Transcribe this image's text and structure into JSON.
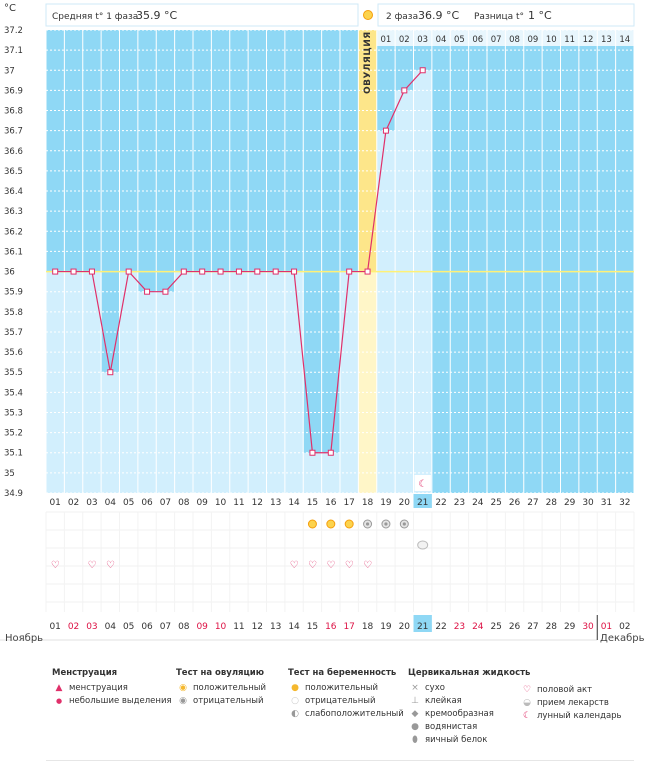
{
  "header": {
    "unit": "°C",
    "phase1_label": "Средняя t° 1 фаза",
    "phase1_value": "35.9 °C",
    "phase2_label": "2 фаза",
    "phase2_value": "36.9 °C",
    "diff_label": "Разница t°",
    "diff_value": "1 °C",
    "ovulation_label": "ОВУЛЯЦИЯ"
  },
  "months": {
    "left": "Ноябрь",
    "right": "Декабрь"
  },
  "chart_data": {
    "type": "line",
    "title": "",
    "ylabel": "°C",
    "ylim": [
      34.9,
      37.2
    ],
    "y_ticks": [
      "37.2",
      "37.1",
      "37",
      "36.9",
      "36.8",
      "36.7",
      "36.6",
      "36.5",
      "36.4",
      "36.3",
      "36.2",
      "36.1",
      "36",
      "35.9",
      "35.8",
      "35.7",
      "35.6",
      "35.5",
      "35.4",
      "35.3",
      "35.2",
      "35.1",
      "35",
      "34.9"
    ],
    "coverline": 36,
    "ovulation_day_index": 17,
    "today_index": 20,
    "cycle_days": [
      "01",
      "02",
      "03",
      "04",
      "05",
      "06",
      "07",
      "08",
      "09",
      "10",
      "11",
      "12",
      "13",
      "14",
      "15",
      "16",
      "17",
      "18",
      "19",
      "20",
      "21",
      "22",
      "23",
      "24",
      "25",
      "26",
      "27",
      "28",
      "29",
      "30",
      "31",
      "32"
    ],
    "top_days_phase2": [
      "01",
      "02",
      "03",
      "04",
      "05",
      "06",
      "07",
      "08",
      "09",
      "10",
      "11",
      "12",
      "13",
      "14"
    ],
    "temperatures": [
      36.0,
      36.0,
      36.0,
      35.5,
      36.0,
      35.9,
      35.9,
      36.0,
      36.0,
      36.0,
      36.0,
      36.0,
      36.0,
      36.0,
      35.1,
      35.1,
      36.0,
      36.0,
      36.7,
      36.9,
      37.0
    ],
    "calendar_dates": [
      "01",
      "02",
      "03",
      "04",
      "05",
      "06",
      "07",
      "08",
      "09",
      "10",
      "11",
      "12",
      "13",
      "14",
      "15",
      "16",
      "17",
      "18",
      "19",
      "20",
      "21",
      "22",
      "23",
      "24",
      "25",
      "26",
      "27",
      "28",
      "29",
      "30",
      "01",
      "02"
    ],
    "weekend_indices": [
      1,
      2,
      8,
      9,
      15,
      16,
      22,
      23,
      29,
      30
    ],
    "ovulation_test_positive": [
      14,
      15,
      16
    ],
    "ovulation_test_negative": [
      17,
      18,
      19
    ],
    "medication_days": [
      20
    ],
    "sex_days": [
      0,
      2,
      3,
      13,
      14,
      15,
      16,
      17
    ],
    "lunar_days": [
      20
    ]
  },
  "legend": {
    "menstruation": {
      "title": "Менструация",
      "items": [
        "менструация",
        "небольшие выделения"
      ]
    },
    "ovulation_test": {
      "title": "Тест на овуляцию",
      "items": [
        "положительный",
        "отрицательный"
      ]
    },
    "pregnancy_test": {
      "title": "Тест на беременность",
      "items": [
        "положительный",
        "отрицательный",
        "слабоположительный"
      ]
    },
    "cervical": {
      "title": "Цервикальная жидкость",
      "items": [
        "сухо",
        "клейкая",
        "кремообразная",
        "водянистая",
        "яичный белок"
      ]
    },
    "other": {
      "items": [
        "половой акт",
        "прием лекарств",
        "лунный календарь"
      ]
    }
  },
  "colors": {
    "phase_bg": "#8fd8f5",
    "light_bar": "#d2effd",
    "ovulation": "#fde68a",
    "line": "#e0306a",
    "weekend": "#dd1144"
  }
}
